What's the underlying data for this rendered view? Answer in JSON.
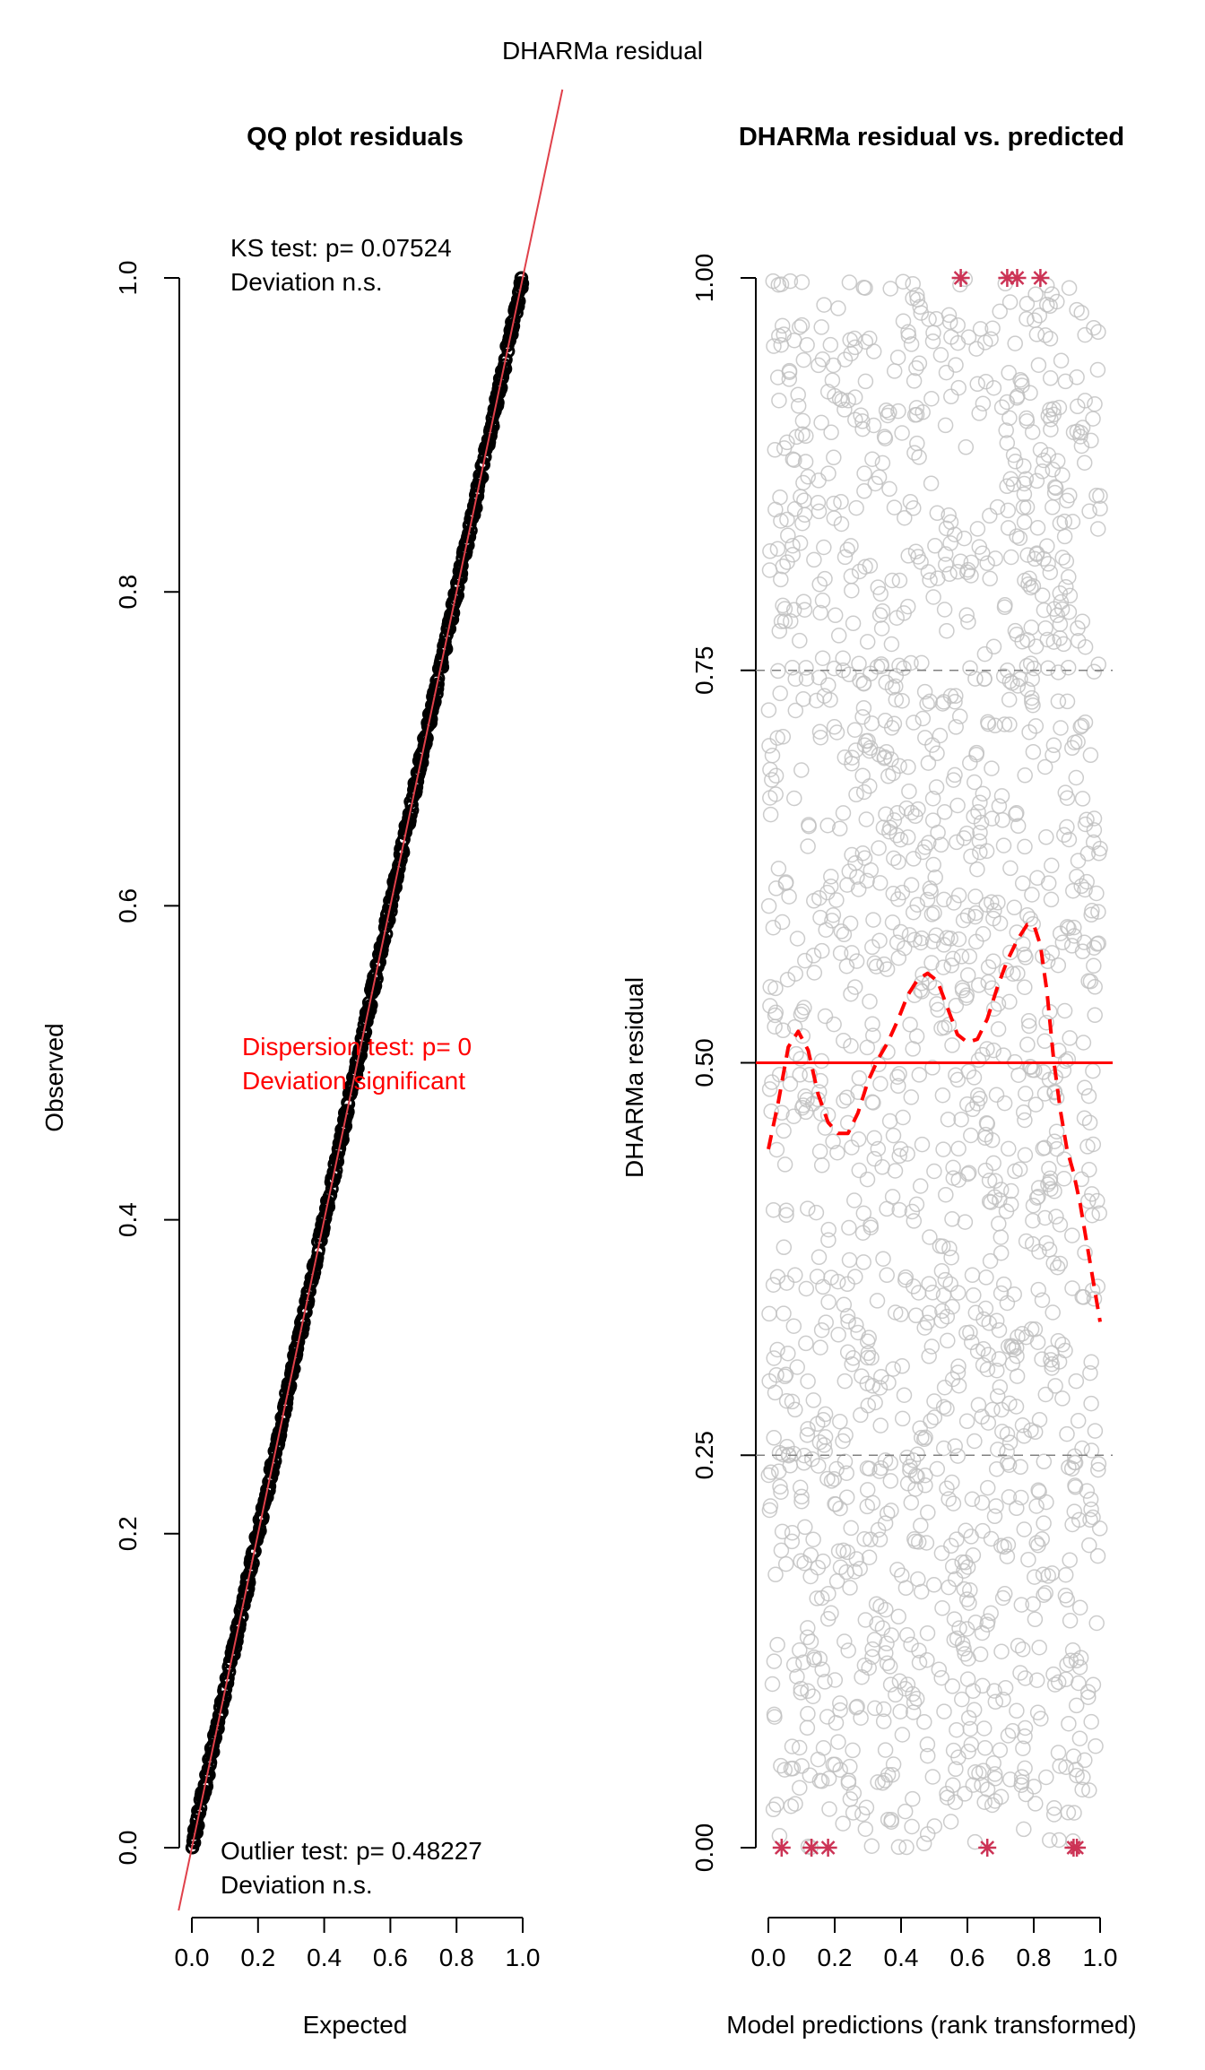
{
  "figure": {
    "title": "DHARMa residual"
  },
  "chart_data": [
    {
      "type": "scatter",
      "title": "QQ plot residuals",
      "xlabel": "Expected",
      "ylabel": "Observed",
      "xlim": [
        0,
        1
      ],
      "ylim": [
        0,
        1
      ],
      "xticks": [
        "0.0",
        "0.2",
        "0.4",
        "0.6",
        "0.8",
        "1.0"
      ],
      "yticks": [
        "0.0",
        "0.2",
        "0.4",
        "0.6",
        "0.8",
        "1.0"
      ],
      "reference_line": {
        "slope": 1,
        "intercept": 0,
        "color": "#e0404a"
      },
      "points_description_value_range": {
        "x": [
          0,
          1
        ],
        "y": [
          0,
          1
        ]
      },
      "point_color": "#000000",
      "annotations": [
        {
          "id": "ks_line1",
          "text": "KS test: p= 0.07524",
          "color": "#000000"
        },
        {
          "id": "ks_line2",
          "text": "Deviation  n.s.",
          "color": "#000000"
        },
        {
          "id": "disp_line1",
          "text": "Dispersion test: p= 0",
          "color": "#ff0000"
        },
        {
          "id": "disp_line2",
          "text": "Deviation  significant",
          "color": "#ff0000"
        },
        {
          "id": "out_line1",
          "text": "Outlier test: p= 0.48227",
          "color": "#000000"
        },
        {
          "id": "out_line2",
          "text": "Deviation  n.s.",
          "color": "#000000"
        }
      ]
    },
    {
      "type": "scatter",
      "title": "DHARMa residual vs. predicted",
      "xlabel": "Model predictions (rank transformed)",
      "ylabel": "DHARMa residual",
      "xlim": [
        0,
        1
      ],
      "ylim": [
        0,
        1
      ],
      "xticks": [
        "0.0",
        "0.2",
        "0.4",
        "0.6",
        "0.8",
        "1.0"
      ],
      "yticks": [
        "0.00",
        "0.25",
        "0.50",
        "0.75",
        "1.00"
      ],
      "point_color": "#bfbfbf",
      "reference_lines": [
        {
          "y": 0.25,
          "style": "dashed",
          "color": "#808080"
        },
        {
          "y": 0.5,
          "style": "solid",
          "color": "#ff0000"
        },
        {
          "y": 0.75,
          "style": "dashed",
          "color": "#808080"
        }
      ],
      "outliers": {
        "color": "#cc3355",
        "marker": "asterisk",
        "top": {
          "y": 1,
          "x": [
            0.58,
            0.72,
            0.75,
            0.82
          ]
        },
        "bottom": {
          "y": 0,
          "x": [
            0.04,
            0.13,
            0.18,
            0.66,
            0.92,
            0.93
          ]
        }
      },
      "smooth": {
        "color": "#ff0000",
        "style": "dashed",
        "x": [
          0.0,
          0.03,
          0.06,
          0.09,
          0.12,
          0.15,
          0.18,
          0.21,
          0.24,
          0.27,
          0.3,
          0.33,
          0.36,
          0.39,
          0.42,
          0.45,
          0.48,
          0.51,
          0.54,
          0.57,
          0.6,
          0.63,
          0.66,
          0.69,
          0.72,
          0.75,
          0.78,
          0.8,
          0.82,
          0.84,
          0.86,
          0.88,
          0.9,
          0.92,
          0.94,
          0.96,
          0.98,
          1.0
        ],
        "y": [
          0.445,
          0.475,
          0.51,
          0.52,
          0.508,
          0.48,
          0.462,
          0.455,
          0.455,
          0.468,
          0.488,
          0.502,
          0.513,
          0.527,
          0.543,
          0.553,
          0.557,
          0.552,
          0.535,
          0.518,
          0.513,
          0.515,
          0.528,
          0.548,
          0.565,
          0.578,
          0.588,
          0.588,
          0.575,
          0.545,
          0.502,
          0.47,
          0.445,
          0.43,
          0.41,
          0.385,
          0.36,
          0.335
        ]
      }
    }
  ]
}
